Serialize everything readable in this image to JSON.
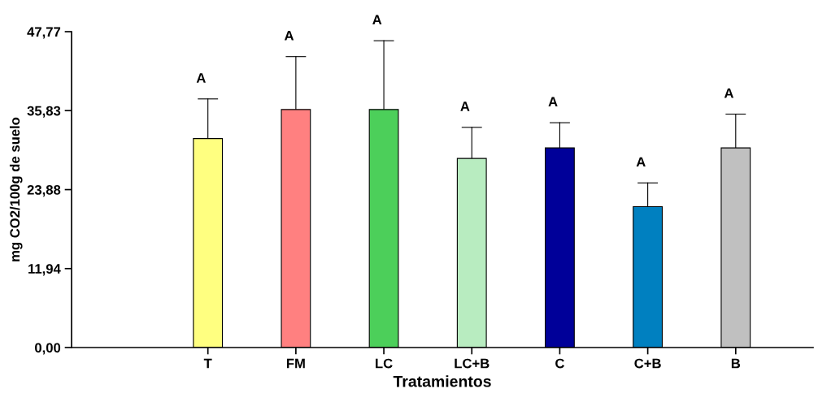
{
  "chart_data": {
    "type": "bar",
    "xlabel": "Tratamientos",
    "ylabel": "mg CO2/100g de suelo",
    "categories": [
      "T",
      "FM",
      "LC",
      "LC+B",
      "C",
      "C+B",
      "B"
    ],
    "values": [
      31.6,
      36.0,
      36.0,
      28.6,
      30.2,
      21.3,
      30.2
    ],
    "colors": [
      "#ffff80",
      "#ff8080",
      "#4ccf5a",
      "#b8ecc0",
      "#000099",
      "#0080c0",
      "#c0c0c0"
    ],
    "errors": [
      [
        31.6,
        37.6
      ],
      [
        36.0,
        44.0
      ],
      [
        36.0,
        46.4
      ],
      [
        28.6,
        33.3
      ],
      [
        30.2,
        34.0
      ],
      [
        21.3,
        24.9
      ],
      [
        30.2,
        35.3
      ]
    ],
    "ylim": [
      0,
      47.77
    ],
    "yticks": [
      {
        "value": 0,
        "label": "0,00"
      },
      {
        "value": 11.94,
        "label": "11,94"
      },
      {
        "value": 23.88,
        "label": "23,88"
      },
      {
        "value": 35.83,
        "label": "35,83"
      },
      {
        "value": 47.77,
        "label": "47,77"
      }
    ],
    "annotations": [
      {
        "text": "A",
        "x": "T",
        "y": 37.6
      },
      {
        "text": "A",
        "x": "FM",
        "y": 44.0
      },
      {
        "text": "A",
        "x": "LC",
        "y": 46.4
      },
      {
        "text": "A",
        "x": "LC+B",
        "y": 33.3
      },
      {
        "text": "A",
        "x": "C",
        "y": 34.0
      },
      {
        "text": "A",
        "x": "C+B",
        "y": 24.9
      },
      {
        "text": "A",
        "x": "B",
        "y": 35.3
      }
    ],
    "grid": false,
    "legend": false
  }
}
